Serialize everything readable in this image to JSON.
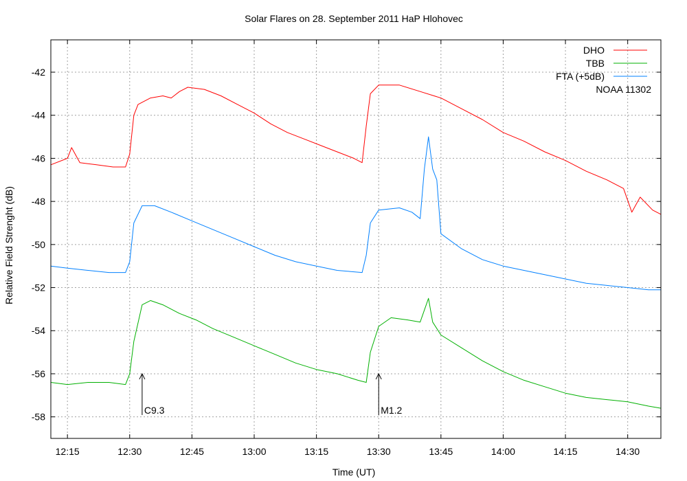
{
  "chart_data": {
    "type": "line",
    "title": "Solar Flares on 28. September 2011 HaP Hlohovec",
    "xlabel": "Time (UT)",
    "ylabel": "Relative Field Strenght (dB)",
    "xlim": [
      "12:11",
      "14:38"
    ],
    "ylim": [
      -59,
      -40.5
    ],
    "x_ticks": [
      "12:15",
      "12:30",
      "12:45",
      "13:00",
      "13:15",
      "13:30",
      "13:45",
      "14:00",
      "14:15",
      "14:30"
    ],
    "y_ticks": [
      -42,
      -44,
      -46,
      -48,
      -50,
      -52,
      -54,
      -56,
      -58
    ],
    "grid": true,
    "legend": {
      "placement": "top-right",
      "note": "NOAA 11302"
    },
    "series": [
      {
        "name": "DHO",
        "color": "#ff0000",
        "points": [
          [
            "12:11",
            -46.3
          ],
          [
            "12:15",
            -46.0
          ],
          [
            "12:16",
            -45.5
          ],
          [
            "12:18",
            -46.2
          ],
          [
            "12:22",
            -46.3
          ],
          [
            "12:26",
            -46.4
          ],
          [
            "12:29",
            -46.4
          ],
          [
            "12:30",
            -45.8
          ],
          [
            "12:31",
            -44.0
          ],
          [
            "12:32",
            -43.5
          ],
          [
            "12:35",
            -43.2
          ],
          [
            "12:38",
            -43.1
          ],
          [
            "12:40",
            -43.2
          ],
          [
            "12:42",
            -42.9
          ],
          [
            "12:44",
            -42.7
          ],
          [
            "12:48",
            -42.8
          ],
          [
            "12:52",
            -43.1
          ],
          [
            "12:56",
            -43.5
          ],
          [
            "13:00",
            -43.9
          ],
          [
            "13:04",
            -44.4
          ],
          [
            "13:08",
            -44.8
          ],
          [
            "13:12",
            -45.1
          ],
          [
            "13:16",
            -45.4
          ],
          [
            "13:20",
            -45.7
          ],
          [
            "13:24",
            -46.0
          ],
          [
            "13:26",
            -46.2
          ],
          [
            "13:27",
            -44.5
          ],
          [
            "13:28",
            -43.0
          ],
          [
            "13:30",
            -42.6
          ],
          [
            "13:35",
            -42.6
          ],
          [
            "13:40",
            -42.9
          ],
          [
            "13:45",
            -43.2
          ],
          [
            "13:50",
            -43.7
          ],
          [
            "13:55",
            -44.2
          ],
          [
            "14:00",
            -44.8
          ],
          [
            "14:05",
            -45.2
          ],
          [
            "14:10",
            -45.7
          ],
          [
            "14:15",
            -46.1
          ],
          [
            "14:20",
            -46.6
          ],
          [
            "14:25",
            -47.0
          ],
          [
            "14:29",
            -47.4
          ],
          [
            "14:31",
            -48.5
          ],
          [
            "14:33",
            -47.8
          ],
          [
            "14:36",
            -48.4
          ],
          [
            "14:38",
            -48.6
          ]
        ]
      },
      {
        "name": "TBB",
        "color": "#00b000",
        "points": [
          [
            "12:11",
            -56.4
          ],
          [
            "12:15",
            -56.5
          ],
          [
            "12:20",
            -56.4
          ],
          [
            "12:25",
            -56.4
          ],
          [
            "12:29",
            -56.5
          ],
          [
            "12:30",
            -56.0
          ],
          [
            "12:31",
            -54.5
          ],
          [
            "12:33",
            -52.8
          ],
          [
            "12:35",
            -52.6
          ],
          [
            "12:38",
            -52.8
          ],
          [
            "12:42",
            -53.2
          ],
          [
            "12:46",
            -53.5
          ],
          [
            "12:50",
            -53.9
          ],
          [
            "12:55",
            -54.3
          ],
          [
            "13:00",
            -54.7
          ],
          [
            "13:05",
            -55.1
          ],
          [
            "13:10",
            -55.5
          ],
          [
            "13:15",
            -55.8
          ],
          [
            "13:20",
            -56.0
          ],
          [
            "13:25",
            -56.3
          ],
          [
            "13:27",
            -56.4
          ],
          [
            "13:28",
            -55.0
          ],
          [
            "13:30",
            -53.8
          ],
          [
            "13:33",
            -53.4
          ],
          [
            "13:37",
            -53.5
          ],
          [
            "13:40",
            -53.6
          ],
          [
            "13:42",
            -52.5
          ],
          [
            "13:43",
            -53.6
          ],
          [
            "13:45",
            -54.2
          ],
          [
            "13:50",
            -54.8
          ],
          [
            "13:55",
            -55.4
          ],
          [
            "14:00",
            -55.9
          ],
          [
            "14:05",
            -56.3
          ],
          [
            "14:10",
            -56.6
          ],
          [
            "14:15",
            -56.9
          ],
          [
            "14:20",
            -57.1
          ],
          [
            "14:25",
            -57.2
          ],
          [
            "14:30",
            -57.3
          ],
          [
            "14:35",
            -57.5
          ],
          [
            "14:38",
            -57.6
          ]
        ]
      },
      {
        "name": "FTA (+5dB)",
        "color": "#0080ff",
        "points": [
          [
            "12:11",
            -51.0
          ],
          [
            "12:15",
            -51.1
          ],
          [
            "12:20",
            -51.2
          ],
          [
            "12:25",
            -51.3
          ],
          [
            "12:29",
            -51.3
          ],
          [
            "12:30",
            -50.8
          ],
          [
            "12:31",
            -49.0
          ],
          [
            "12:33",
            -48.2
          ],
          [
            "12:36",
            -48.2
          ],
          [
            "12:40",
            -48.5
          ],
          [
            "12:45",
            -48.9
          ],
          [
            "12:50",
            -49.3
          ],
          [
            "12:55",
            -49.7
          ],
          [
            "13:00",
            -50.1
          ],
          [
            "13:05",
            -50.5
          ],
          [
            "13:10",
            -50.8
          ],
          [
            "13:15",
            -51.0
          ],
          [
            "13:20",
            -51.2
          ],
          [
            "13:26",
            -51.3
          ],
          [
            "13:27",
            -50.5
          ],
          [
            "13:28",
            -49.0
          ],
          [
            "13:30",
            -48.4
          ],
          [
            "13:35",
            -48.3
          ],
          [
            "13:38",
            -48.5
          ],
          [
            "13:40",
            -48.8
          ],
          [
            "13:41",
            -46.5
          ],
          [
            "13:42",
            -45.0
          ],
          [
            "13:43",
            -46.5
          ],
          [
            "13:44",
            -47.0
          ],
          [
            "13:45",
            -49.5
          ],
          [
            "13:50",
            -50.2
          ],
          [
            "13:55",
            -50.7
          ],
          [
            "14:00",
            -51.0
          ],
          [
            "14:05",
            -51.2
          ],
          [
            "14:10",
            -51.4
          ],
          [
            "14:15",
            -51.6
          ],
          [
            "14:20",
            -51.8
          ],
          [
            "14:25",
            -51.9
          ],
          [
            "14:30",
            -52.0
          ],
          [
            "14:35",
            -52.1
          ],
          [
            "14:38",
            -52.1
          ]
        ]
      }
    ],
    "annotations": [
      {
        "label": "C9.3",
        "x": "12:33",
        "y": -56.0
      },
      {
        "label": "M1.2",
        "x": "13:30",
        "y": -56.0
      }
    ]
  }
}
